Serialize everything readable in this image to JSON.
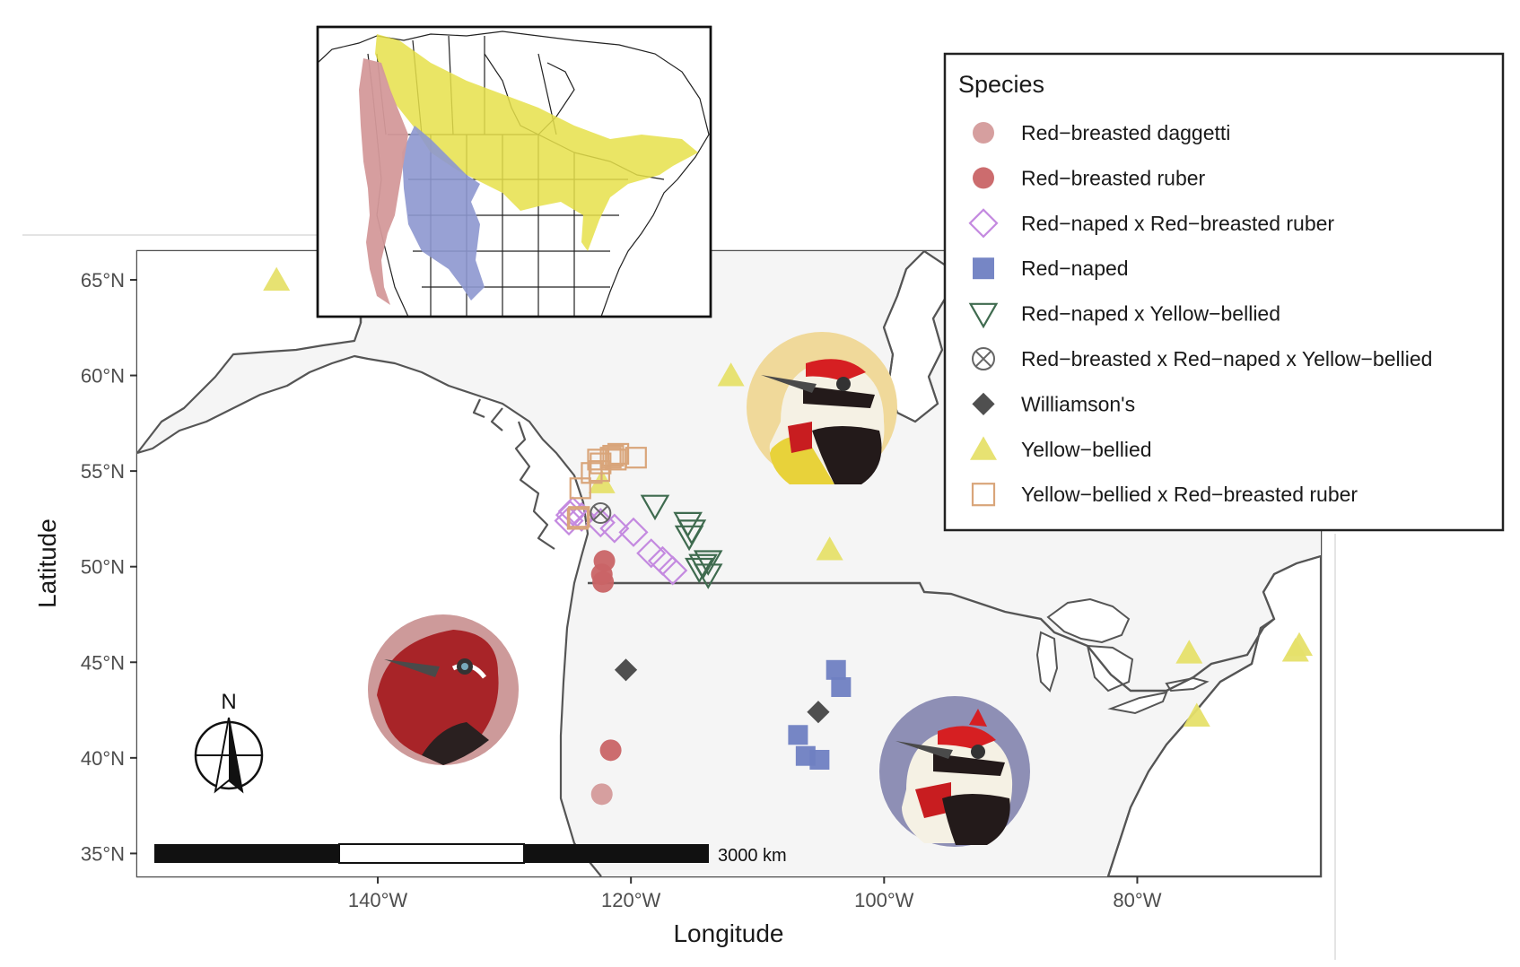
{
  "map": {
    "type": "point-map",
    "xlabel": "Longitude",
    "ylabel": "Latitude",
    "x_ticks": [
      {
        "value": -140,
        "label": "140°W"
      },
      {
        "value": -120,
        "label": "120°W"
      },
      {
        "value": -100,
        "label": "100°W"
      },
      {
        "value": -80,
        "label": "80°W"
      }
    ],
    "y_ticks": [
      {
        "value": 35,
        "label": "35°N"
      },
      {
        "value": 40,
        "label": "40°N"
      },
      {
        "value": 45,
        "label": "45°N"
      },
      {
        "value": 50,
        "label": "50°N"
      },
      {
        "value": 55,
        "label": "55°N"
      },
      {
        "value": 60,
        "label": "60°N"
      },
      {
        "value": 65,
        "label": "65°N"
      }
    ],
    "xlim": [
      -159,
      -65.5
    ],
    "ylim": [
      33.8,
      66.5
    ],
    "grid": true,
    "scale_bar_label": "3000 km",
    "north_arrow_label": "N"
  },
  "legend": {
    "title": "Species",
    "position": "top-right",
    "items": [
      {
        "key": "rbd",
        "label": "Red−breasted daggetti",
        "shape": "circle",
        "color": "#d49a9a",
        "filled": true
      },
      {
        "key": "rbr",
        "label": "Red−breasted ruber",
        "shape": "circle",
        "color": "#c96466",
        "filled": true
      },
      {
        "key": "rnxrbr",
        "label": "Red−naped x Red−breasted ruber",
        "shape": "diamond-open",
        "color": "#c48ae0",
        "filled": false
      },
      {
        "key": "rn",
        "label": "Red−naped",
        "shape": "square",
        "color": "#6f7fc2",
        "filled": true
      },
      {
        "key": "rnxyb",
        "label": "Red−naped x Yellow−bellied",
        "shape": "triangle-down-open",
        "color": "#3f6b4f",
        "filled": false
      },
      {
        "key": "rbxrnxyb",
        "label": "Red−breasted x Red−naped x Yellow−bellied",
        "shape": "circle-x",
        "color": "#666666",
        "filled": false
      },
      {
        "key": "w",
        "label": "Williamson's",
        "shape": "diamond",
        "color": "#4f4f4f",
        "filled": true
      },
      {
        "key": "yb",
        "label": "Yellow−bellied",
        "shape": "triangle",
        "color": "#e6e06a",
        "filled": true
      },
      {
        "key": "ybxrbr",
        "label": "Yellow−bellied x Red−breasted ruber",
        "shape": "square-open",
        "color": "#d9a57a",
        "filled": false
      }
    ]
  },
  "chart_data": {
    "type": "scatter",
    "xlabel": "Longitude",
    "ylabel": "Latitude",
    "series": [
      {
        "name": "Red−breasted daggetti",
        "points": [
          [
            -122.3,
            38.1
          ]
        ]
      },
      {
        "name": "Red−breasted ruber",
        "points": [
          [
            -121.6,
            40.4
          ],
          [
            -122.1,
            50.3
          ],
          [
            -122.3,
            49.6
          ],
          [
            -122.2,
            49.2
          ]
        ]
      },
      {
        "name": "Red−naped x Red−breasted ruber",
        "points": [
          [
            -124.8,
            52.7
          ],
          [
            -124.6,
            52.9
          ],
          [
            -124.9,
            52.4
          ],
          [
            -123.9,
            52.6
          ],
          [
            -122.4,
            52.3
          ],
          [
            -121.3,
            52.0
          ],
          [
            -119.8,
            51.8
          ],
          [
            -118.4,
            50.7
          ],
          [
            -117.5,
            50.3
          ],
          [
            -116.7,
            49.8
          ]
        ]
      },
      {
        "name": "Red−naped",
        "points": [
          [
            -103.8,
            44.6
          ],
          [
            -103.4,
            43.7
          ],
          [
            -106.8,
            41.2
          ],
          [
            -106.2,
            40.1
          ],
          [
            -105.1,
            39.9
          ]
        ]
      },
      {
        "name": "Red−naped x Yellow−bellied",
        "points": [
          [
            -118.1,
            53.2
          ],
          [
            -115.5,
            52.3
          ],
          [
            -115.2,
            51.9
          ],
          [
            -115.4,
            51.6
          ],
          [
            -113.9,
            50.3
          ],
          [
            -114.3,
            50.1
          ],
          [
            -114.6,
            49.9
          ],
          [
            -113.9,
            49.6
          ]
        ]
      },
      {
        "name": "Red−breasted x Red−naped x Yellow−bellied",
        "points": [
          [
            -122.4,
            52.8
          ]
        ]
      },
      {
        "name": "Williamson's",
        "points": [
          [
            -120.4,
            44.6
          ],
          [
            -105.2,
            42.4
          ]
        ]
      },
      {
        "name": "Yellow−bellied",
        "points": [
          [
            -148.0,
            65.0
          ],
          [
            -112.1,
            60.0
          ],
          [
            -122.3,
            54.4
          ],
          [
            -104.3,
            50.9
          ],
          [
            -75.9,
            45.5
          ],
          [
            -75.3,
            42.2
          ],
          [
            -67.5,
            45.6
          ],
          [
            -67.2,
            45.9
          ]
        ]
      },
      {
        "name": "Yellow−bellied x Red−breasted ruber",
        "points": [
          [
            -124.1,
            52.6
          ],
          [
            -124.0,
            54.1
          ],
          [
            -123.1,
            54.9
          ],
          [
            -122.5,
            55.0
          ],
          [
            -122.4,
            55.4
          ],
          [
            -122.6,
            55.6
          ],
          [
            -121.6,
            55.7
          ],
          [
            -121.4,
            55.8
          ],
          [
            -121.2,
            55.6
          ],
          [
            -121.0,
            55.9
          ],
          [
            -119.6,
            55.7
          ],
          [
            -124.2,
            52.5
          ]
        ]
      }
    ]
  }
}
